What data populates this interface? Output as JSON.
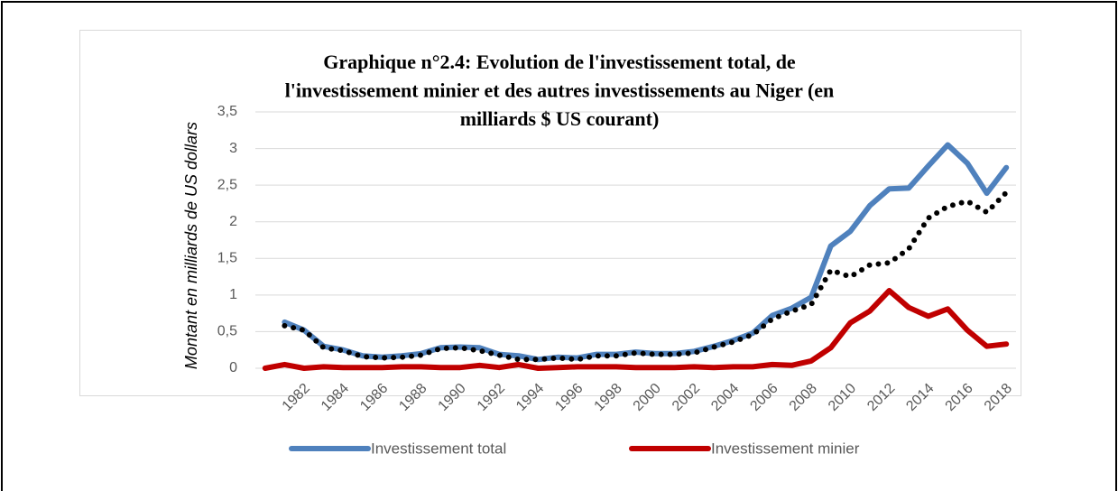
{
  "chart_data": {
    "type": "line",
    "title": [
      "Graphique n°2.4: Evolution de l'investissement total, de",
      "l'investissement minier et des autres investissements au Niger (en",
      "milliards $ US courant)"
    ],
    "y_label": "Montant en milliards de US dollars",
    "categories": [
      null,
      null,
      "1982",
      null,
      "1984",
      null,
      "1986",
      null,
      "1988",
      null,
      "1990",
      null,
      "1992",
      null,
      "1994",
      null,
      "1996",
      null,
      "1998",
      null,
      "2000",
      null,
      "2002",
      null,
      "2004",
      null,
      "2006",
      null,
      "2008",
      null,
      "2010",
      null,
      "2012",
      null,
      "2014",
      null,
      "2016",
      null,
      "2018"
    ],
    "series": [
      {
        "name": "Investissement total",
        "color": "#4f81bd",
        "style": "solid",
        "values": [
          null,
          0.63,
          0.52,
          0.3,
          0.25,
          0.17,
          0.15,
          0.17,
          0.2,
          0.28,
          0.29,
          0.28,
          0.19,
          0.17,
          0.12,
          0.15,
          0.14,
          0.19,
          0.19,
          0.22,
          0.2,
          0.2,
          0.23,
          0.3,
          0.38,
          0.48,
          0.72,
          0.82,
          0.97,
          1.67,
          1.87,
          2.22,
          2.45,
          2.46,
          2.76,
          3.05,
          2.8,
          2.39,
          2.74
        ]
      },
      {
        "name": "Investissement minier",
        "color": "#c00000",
        "style": "solid",
        "values": [
          0.0,
          0.05,
          0.0,
          0.02,
          0.01,
          0.01,
          0.01,
          0.02,
          0.02,
          0.01,
          0.01,
          0.04,
          0.01,
          0.05,
          0.0,
          0.01,
          0.02,
          0.02,
          0.02,
          0.01,
          0.01,
          0.01,
          0.02,
          0.01,
          0.02,
          0.02,
          0.05,
          0.04,
          0.1,
          0.28,
          0.62,
          0.78,
          1.06,
          0.83,
          0.71,
          0.81,
          0.52,
          0.3,
          0.33
        ]
      },
      {
        "color": "#000000",
        "style": "dotted",
        "values": [
          null,
          0.58,
          0.52,
          0.28,
          0.24,
          0.16,
          0.14,
          0.15,
          0.18,
          0.27,
          0.28,
          0.24,
          0.18,
          0.12,
          0.12,
          0.14,
          0.12,
          0.17,
          0.17,
          0.21,
          0.19,
          0.19,
          0.21,
          0.29,
          0.36,
          0.46,
          0.67,
          0.78,
          0.87,
          1.34,
          1.25,
          1.41,
          1.44,
          1.63,
          2.05,
          2.21,
          2.28,
          2.13,
          2.4
        ]
      }
    ],
    "ylim": [
      0,
      3.5
    ],
    "yticks": [
      0,
      {
        "value": 0.5,
        "label": "0,5"
      },
      1,
      {
        "value": 1.5,
        "label": "1,5"
      },
      2,
      {
        "value": 2.5,
        "label": "2,5"
      },
      3,
      {
        "value": 3.5,
        "label": "3,5"
      }
    ],
    "grid": true,
    "legend": "bottom"
  }
}
